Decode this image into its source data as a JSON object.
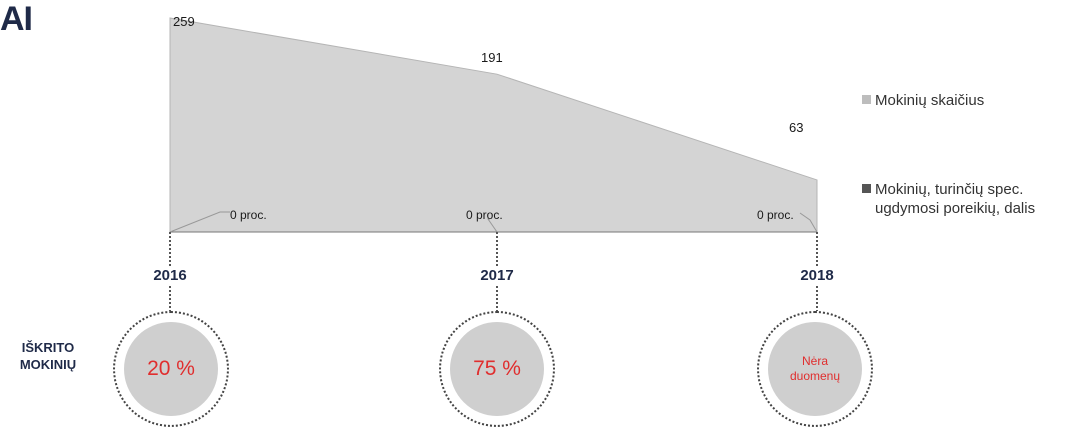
{
  "corner_text": "AI",
  "chart_data": {
    "type": "area",
    "x": [
      "2016",
      "2017",
      "2018"
    ],
    "series": [
      {
        "name": "Mokinių skaičius",
        "values": [
          259,
          191,
          63
        ],
        "color": "#d4d4d4"
      },
      {
        "name": "Mokinių, turinčių spec. ugdymosi poreikių, dalis",
        "values": [
          0,
          0,
          0
        ],
        "value_labels": [
          "0 proc.",
          "0 proc.",
          "0 proc."
        ],
        "color": "#555555"
      }
    ],
    "data_labels": [
      "259",
      "191",
      "63"
    ],
    "ylim": [
      0,
      259
    ],
    "legend_position": "right",
    "grid": false
  },
  "legend": {
    "item1": "Mokinių skaičius",
    "item2_line1": "Mokinių, turinčių spec.",
    "item2_line2": "ugdymosi poreikių, dalis"
  },
  "dropout": {
    "title_line1": "IŠKRITO",
    "title_line2": "MOKINIŲ",
    "values": [
      "20 %",
      "75 %",
      "Nėra duomenų"
    ],
    "value_line1": [
      "20 %",
      "75 %",
      "Nėra"
    ],
    "value_line2": [
      "",
      "",
      "duomenų"
    ],
    "highlight_color": "#e02e2e"
  }
}
